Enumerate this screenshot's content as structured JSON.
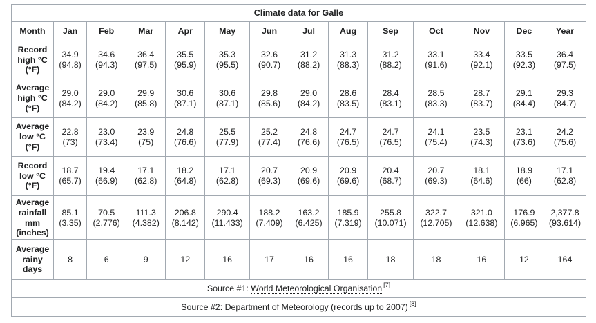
{
  "table": {
    "caption": "Climate data for Galle",
    "header": {
      "month": "Month",
      "months": [
        "Jan",
        "Feb",
        "Mar",
        "Apr",
        "May",
        "Jun",
        "Jul",
        "Aug",
        "Sep",
        "Oct",
        "Nov",
        "Dec"
      ],
      "year": "Year"
    },
    "rows": [
      {
        "label": [
          "Record",
          "high °C",
          "(°F)"
        ],
        "cells": [
          [
            "34.9",
            "(94.8)"
          ],
          [
            "34.6",
            "(94.3)"
          ],
          [
            "36.4",
            "(97.5)"
          ],
          [
            "35.5",
            "(95.9)"
          ],
          [
            "35.3",
            "(95.5)"
          ],
          [
            "32.6",
            "(90.7)"
          ],
          [
            "31.2",
            "(88.2)"
          ],
          [
            "31.3",
            "(88.3)"
          ],
          [
            "31.2",
            "(88.2)"
          ],
          [
            "33.1",
            "(91.6)"
          ],
          [
            "33.4",
            "(92.1)"
          ],
          [
            "33.5",
            "(92.3)"
          ]
        ],
        "year": [
          "36.4",
          "(97.5)"
        ]
      },
      {
        "label": [
          "Average",
          "high °C",
          "(°F)"
        ],
        "cells": [
          [
            "29.0",
            "(84.2)"
          ],
          [
            "29.0",
            "(84.2)"
          ],
          [
            "29.9",
            "(85.8)"
          ],
          [
            "30.6",
            "(87.1)"
          ],
          [
            "30.6",
            "(87.1)"
          ],
          [
            "29.8",
            "(85.6)"
          ],
          [
            "29.0",
            "(84.2)"
          ],
          [
            "28.6",
            "(83.5)"
          ],
          [
            "28.4",
            "(83.1)"
          ],
          [
            "28.5",
            "(83.3)"
          ],
          [
            "28.7",
            "(83.7)"
          ],
          [
            "29.1",
            "(84.4)"
          ]
        ],
        "year": [
          "29.3",
          "(84.7)"
        ]
      },
      {
        "label": [
          "Average",
          "low °C",
          "(°F)"
        ],
        "cells": [
          [
            "22.8",
            "(73)"
          ],
          [
            "23.0",
            "(73.4)"
          ],
          [
            "23.9",
            "(75)"
          ],
          [
            "24.8",
            "(76.6)"
          ],
          [
            "25.5",
            "(77.9)"
          ],
          [
            "25.2",
            "(77.4)"
          ],
          [
            "24.8",
            "(76.6)"
          ],
          [
            "24.7",
            "(76.5)"
          ],
          [
            "24.7",
            "(76.5)"
          ],
          [
            "24.1",
            "(75.4)"
          ],
          [
            "23.5",
            "(74.3)"
          ],
          [
            "23.1",
            "(73.6)"
          ]
        ],
        "year": [
          "24.2",
          "(75.6)"
        ]
      },
      {
        "label": [
          "Record",
          "low °C",
          "(°F)"
        ],
        "cells": [
          [
            "18.7",
            "(65.7)"
          ],
          [
            "19.4",
            "(66.9)"
          ],
          [
            "17.1",
            "(62.8)"
          ],
          [
            "18.2",
            "(64.8)"
          ],
          [
            "17.1",
            "(62.8)"
          ],
          [
            "20.7",
            "(69.3)"
          ],
          [
            "20.9",
            "(69.6)"
          ],
          [
            "20.9",
            "(69.6)"
          ],
          [
            "20.4",
            "(68.7)"
          ],
          [
            "20.7",
            "(69.3)"
          ],
          [
            "18.1",
            "(64.6)"
          ],
          [
            "18.9",
            "(66)"
          ]
        ],
        "year": [
          "17.1",
          "(62.8)"
        ]
      },
      {
        "label": [
          "Average",
          "rainfall",
          "mm",
          "(inches)"
        ],
        "cells": [
          [
            "85.1",
            "(3.35)"
          ],
          [
            "70.5",
            "(2.776)"
          ],
          [
            "111.3",
            "(4.382)"
          ],
          [
            "206.8",
            "(8.142)"
          ],
          [
            "290.4",
            "(11.433)"
          ],
          [
            "188.2",
            "(7.409)"
          ],
          [
            "163.2",
            "(6.425)"
          ],
          [
            "185.9",
            "(7.319)"
          ],
          [
            "255.8",
            "(10.071)"
          ],
          [
            "322.7",
            "(12.705)"
          ],
          [
            "321.0",
            "(12.638)"
          ],
          [
            "176.9",
            "(6.965)"
          ]
        ],
        "year": [
          "2,377.8",
          "(93.614)"
        ]
      },
      {
        "label": [
          "Average",
          "rainy",
          "days"
        ],
        "cells": [
          [
            "8"
          ],
          [
            "6"
          ],
          [
            "9"
          ],
          [
            "12"
          ],
          [
            "16"
          ],
          [
            "17"
          ],
          [
            "16"
          ],
          [
            "16"
          ],
          [
            "18"
          ],
          [
            "18"
          ],
          [
            "16"
          ],
          [
            "12"
          ]
        ],
        "year": [
          "164"
        ]
      }
    ],
    "sources": [
      {
        "prefix": "Source #1: ",
        "link": "World Meteorological Organisation",
        "suffix": "",
        "ref": "[7]"
      },
      {
        "prefix": "Source #2: Department of Meteorology (records up to 2007)",
        "link": "",
        "suffix": "",
        "ref": "[8]"
      }
    ]
  }
}
